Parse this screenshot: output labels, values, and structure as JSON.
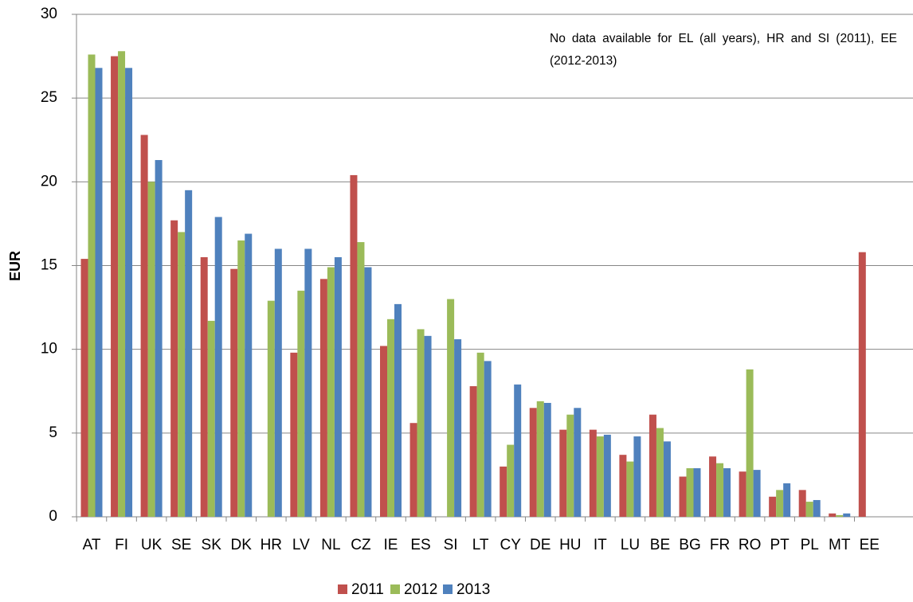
{
  "chart_data": {
    "type": "bar",
    "y_label": "EUR",
    "annotation": "No data available for EL (all years), HR and SI (2011), EE (2012-2013)",
    "categories": [
      "AT",
      "FI",
      "UK",
      "SE",
      "SK",
      "DK",
      "HR",
      "LV",
      "NL",
      "CZ",
      "IE",
      "ES",
      "SI",
      "LT",
      "CY",
      "DE",
      "HU",
      "IT",
      "LU",
      "BE",
      "BG",
      "FR",
      "RO",
      "PT",
      "PL",
      "MT",
      "EE"
    ],
    "series": [
      {
        "name": "2011",
        "color": "#c0504d",
        "values": [
          15.4,
          27.5,
          22.8,
          17.7,
          15.5,
          14.8,
          null,
          9.8,
          14.2,
          20.4,
          10.2,
          5.6,
          null,
          7.8,
          3.0,
          6.5,
          5.2,
          5.2,
          3.7,
          6.1,
          2.4,
          3.6,
          2.7,
          1.2,
          1.6,
          0.2,
          15.8
        ]
      },
      {
        "name": "2012",
        "color": "#9bbb59",
        "values": [
          27.6,
          27.8,
          20.0,
          17.0,
          11.7,
          16.5,
          12.9,
          13.5,
          14.9,
          16.4,
          11.8,
          11.2,
          13.0,
          9.8,
          4.3,
          6.9,
          6.1,
          4.8,
          3.3,
          5.3,
          2.9,
          3.2,
          8.8,
          1.6,
          0.9,
          0.1,
          null
        ]
      },
      {
        "name": "2013",
        "color": "#4f81bd",
        "values": [
          26.8,
          26.8,
          21.3,
          19.5,
          17.9,
          16.9,
          16.0,
          16.0,
          15.5,
          14.9,
          12.7,
          10.8,
          10.6,
          9.3,
          7.9,
          6.8,
          6.5,
          4.9,
          4.8,
          4.5,
          2.9,
          2.9,
          2.8,
          2.0,
          1.0,
          0.2,
          null
        ]
      }
    ],
    "ylim": [
      0,
      30
    ],
    "yticks": [
      0,
      5,
      10,
      15,
      20,
      25,
      30
    ],
    "grid": true,
    "legend": "bottom"
  }
}
